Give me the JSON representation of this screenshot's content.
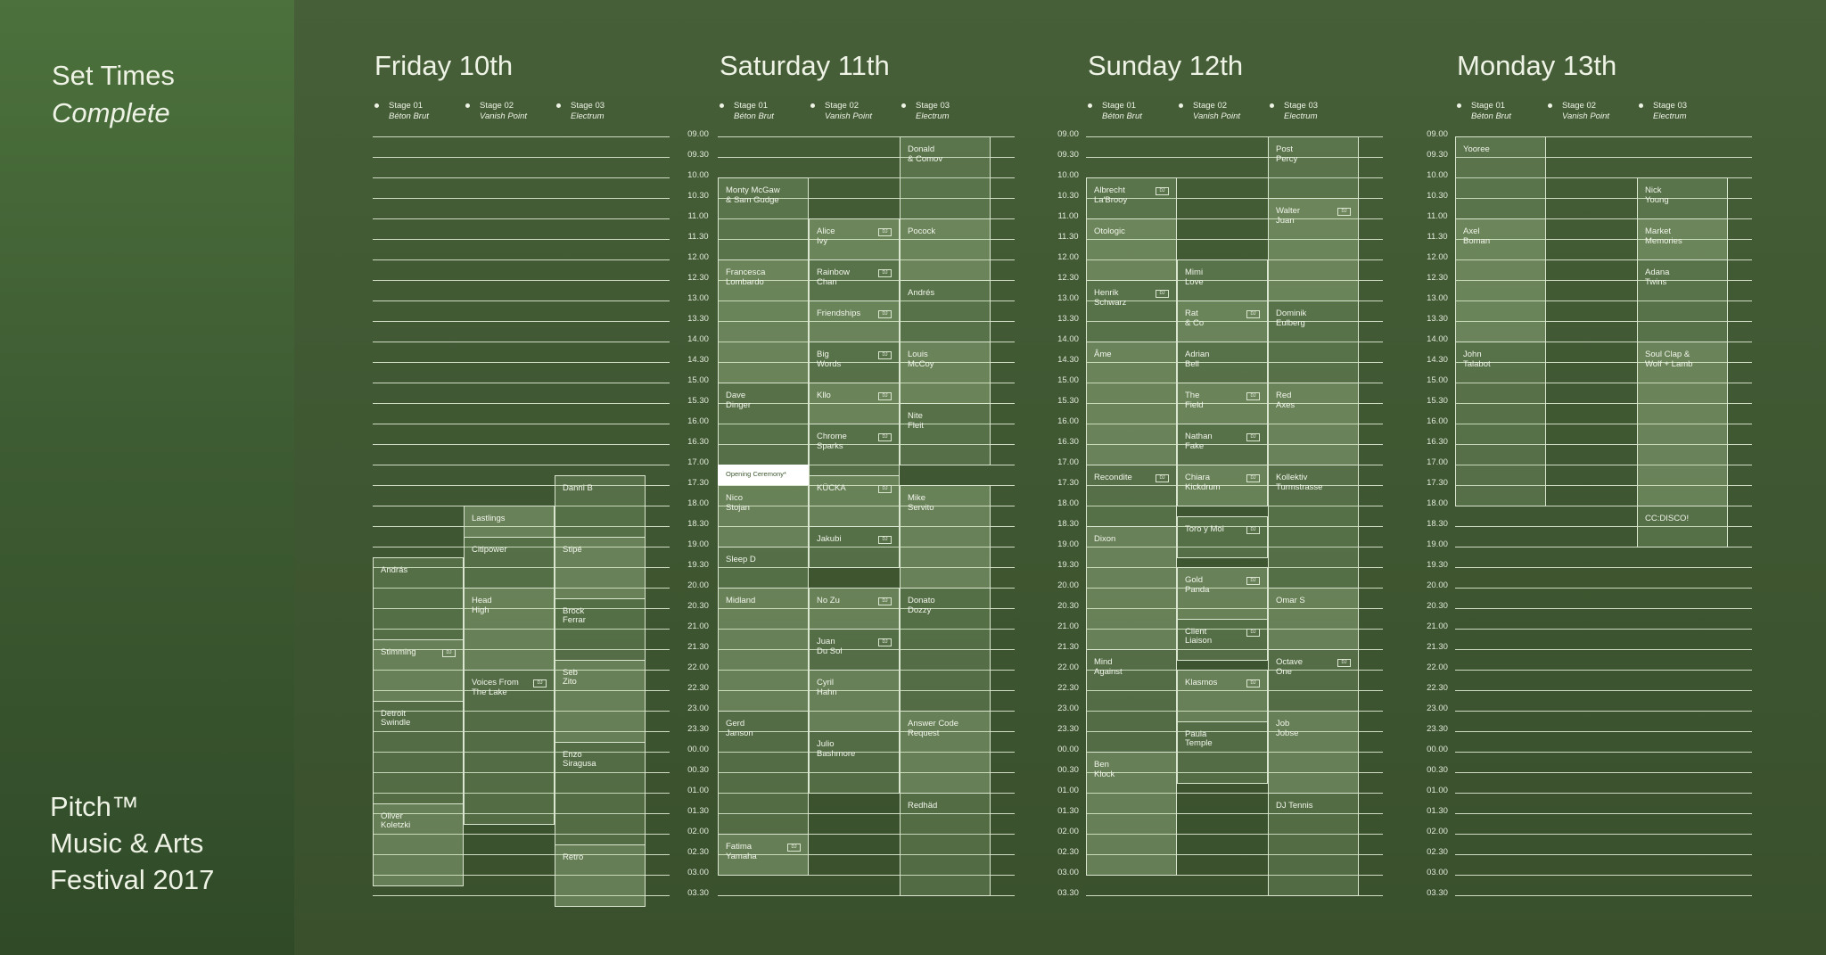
{
  "sidebar": {
    "title": "Set Times",
    "subtitle": "Complete",
    "footer": [
      "Pitch™",
      "Music & Arts",
      "Festival 2017"
    ]
  },
  "time_labels": [
    "09.00",
    "09.30",
    "10.00",
    "10.30",
    "11.00",
    "11.30",
    "12.00",
    "12.30",
    "13.00",
    "13.30",
    "14.00",
    "14.30",
    "15.00",
    "15.30",
    "16.00",
    "16.30",
    "17.00",
    "17.30",
    "18.00",
    "18.30",
    "19.00",
    "19.30",
    "20.00",
    "20.30",
    "21.00",
    "21.30",
    "22.00",
    "22.30",
    "23.00",
    "23.30",
    "00.00",
    "00.30",
    "01.00",
    "01.30",
    "02.00",
    "02.30",
    "03.00",
    "03.30"
  ],
  "tag_label": "DJ",
  "days": [
    {
      "title": "Friday 10th",
      "stages": [
        {
          "name": "Stage 01",
          "sub": "Béton Brut"
        },
        {
          "name": "Stage 02",
          "sub": "Vanish Point"
        },
        {
          "name": "Stage 03",
          "sub": "Electrum"
        }
      ],
      "sets": [
        [
          {
            "name": "András",
            "start": 20.5,
            "end": 24.5,
            "shade": 1
          },
          {
            "name": "Stimming",
            "start": 24.5,
            "end": 27.5,
            "shade": 2,
            "tag": true
          },
          {
            "name": "Detroit\nSwindle",
            "start": 27.5,
            "end": 32.5,
            "shade": 1
          },
          {
            "name": "Oliver\nKoletzki",
            "start": 32.5,
            "end": 36.5,
            "shade": 2
          }
        ],
        [
          {
            "name": "Lastlings",
            "start": 18.0,
            "end": 19.5,
            "shade": 2
          },
          {
            "name": "Citipower",
            "start": 19.5,
            "end": 22.0,
            "shade": 1
          },
          {
            "name": "Head\nHigh",
            "start": 22.0,
            "end": 26.0,
            "shade": 2
          },
          {
            "name": "Voices From\nThe Lake",
            "start": 26.0,
            "end": 33.5,
            "shade": 1,
            "tag": true
          }
        ],
        [
          {
            "name": "Danni B",
            "start": 16.5,
            "end": 19.5,
            "shade": 1
          },
          {
            "name": "Stipé",
            "start": 19.5,
            "end": 22.5,
            "shade": 2
          },
          {
            "name": "Brock\nFerrar",
            "start": 22.5,
            "end": 25.5,
            "shade": 1
          },
          {
            "name": "Seb\nZito",
            "start": 25.5,
            "end": 29.5,
            "shade": 2
          },
          {
            "name": "Enzo\nSiragusa",
            "start": 29.5,
            "end": 34.5,
            "shade": 1
          },
          {
            "name": "Retro",
            "start": 34.5,
            "end": 37.5,
            "shade": 2
          }
        ]
      ]
    },
    {
      "title": "Saturday 11th",
      "stages": [
        {
          "name": "Stage 01",
          "sub": "Béton Brut"
        },
        {
          "name": "Stage 02",
          "sub": "Vanish Point"
        },
        {
          "name": "Stage 03",
          "sub": "Electrum"
        }
      ],
      "sets": [
        [
          {
            "name": "Monty McGaw\n& Sam Gudge",
            "start": 2.0,
            "end": 6.0,
            "shade": 1
          },
          {
            "name": "Francesca\nLombardo",
            "start": 6.0,
            "end": 12.0,
            "shade": 2
          },
          {
            "name": "Dave\nDinger",
            "start": 12.0,
            "end": 16.0,
            "shade": 1
          },
          {
            "name": "Opening Ceremony*",
            "start": 16.0,
            "end": 17.0,
            "shade": 0,
            "white": true
          },
          {
            "name": "Nico\nStojan",
            "start": 17.0,
            "end": 20.0,
            "shade": 2
          },
          {
            "name": "Sleep D",
            "start": 20.0,
            "end": 22.0,
            "shade": 1
          },
          {
            "name": "Midland",
            "start": 22.0,
            "end": 28.0,
            "shade": 2
          },
          {
            "name": "Gerd\nJanson",
            "start": 28.0,
            "end": 34.0,
            "shade": 1
          },
          {
            "name": "Fatima\nYamaha",
            "start": 34.0,
            "end": 36.0,
            "shade": 2,
            "tag": true
          }
        ],
        [
          {
            "name": "Alice\nIvy",
            "start": 4.0,
            "end": 6.0,
            "shade": 2,
            "tag": true
          },
          {
            "name": "Rainbow\nChan",
            "start": 6.0,
            "end": 8.0,
            "shade": 1,
            "tag": true
          },
          {
            "name": "Friendships",
            "start": 8.0,
            "end": 10.0,
            "shade": 2,
            "tag": true
          },
          {
            "name": "Big\nWords",
            "start": 10.0,
            "end": 12.0,
            "shade": 1,
            "tag": true
          },
          {
            "name": "Kllo",
            "start": 12.0,
            "end": 14.0,
            "shade": 2,
            "tag": true
          },
          {
            "name": "Chrome\nSparks",
            "start": 14.0,
            "end": 16.5,
            "shade": 1,
            "tag": true
          },
          {
            "name": "KÜCKA",
            "start": 16.5,
            "end": 19.0,
            "shade": 2,
            "tag": true
          },
          {
            "name": "Jakubi",
            "start": 19.0,
            "end": 21.0,
            "shade": 1,
            "tag": true
          },
          {
            "name": "No Zu",
            "start": 22.0,
            "end": 24.0,
            "shade": 2,
            "tag": true
          },
          {
            "name": "Juan\nDu Sol",
            "start": 24.0,
            "end": 26.0,
            "shade": 1,
            "tag": true
          },
          {
            "name": "Cyril\nHahn",
            "start": 26.0,
            "end": 29.0,
            "shade": 2
          },
          {
            "name": "Julio\nBashmore",
            "start": 29.0,
            "end": 32.0,
            "shade": 1
          }
        ],
        [
          {
            "name": "Donald\n& Comov",
            "start": 0.0,
            "end": 4.0,
            "shade": 1
          },
          {
            "name": "Pocock",
            "start": 4.0,
            "end": 7.0,
            "shade": 2
          },
          {
            "name": "Andrés",
            "start": 7.0,
            "end": 10.0,
            "shade": 1
          },
          {
            "name": "Louis\nMcCoy",
            "start": 10.0,
            "end": 13.0,
            "shade": 2
          },
          {
            "name": "Nite\nFleit",
            "start": 13.0,
            "end": 16.0,
            "shade": 1
          },
          {
            "name": "Mike\nServito",
            "start": 17.0,
            "end": 22.0,
            "shade": 2
          },
          {
            "name": "Donato\nDozzy",
            "start": 22.0,
            "end": 28.0,
            "shade": 1
          },
          {
            "name": "Answer Code\nRequest",
            "start": 28.0,
            "end": 32.0,
            "shade": 2
          },
          {
            "name": "Redhäd",
            "start": 32.0,
            "end": 37.0,
            "shade": 1
          }
        ]
      ]
    },
    {
      "title": "Sunday 12th",
      "stages": [
        {
          "name": "Stage 01",
          "sub": "Béton Brut"
        },
        {
          "name": "Stage 02",
          "sub": "Vanish Point"
        },
        {
          "name": "Stage 03",
          "sub": "Electrum"
        }
      ],
      "sets": [
        [
          {
            "name": "Albrecht\nLa'Brooy",
            "start": 2.0,
            "end": 4.0,
            "shade": 1,
            "tag": true
          },
          {
            "name": "Otologic",
            "start": 4.0,
            "end": 7.0,
            "shade": 2
          },
          {
            "name": "Henrik\nSchwarz",
            "start": 7.0,
            "end": 10.0,
            "shade": 1,
            "tag": true
          },
          {
            "name": "Âme",
            "start": 10.0,
            "end": 16.0,
            "shade": 2
          },
          {
            "name": "Recondite",
            "start": 16.0,
            "end": 19.0,
            "shade": 1,
            "tag": true
          },
          {
            "name": "Dixon",
            "start": 19.0,
            "end": 25.0,
            "shade": 2
          },
          {
            "name": "Mind\nAgainst",
            "start": 25.0,
            "end": 30.0,
            "shade": 1
          },
          {
            "name": "Ben\nKlock",
            "start": 30.0,
            "end": 36.0,
            "shade": 2
          }
        ],
        [
          {
            "name": "Mimi\nLove",
            "start": 6.0,
            "end": 8.0,
            "shade": 1
          },
          {
            "name": "Rat\n& Co",
            "start": 8.0,
            "end": 10.0,
            "shade": 2,
            "tag": true
          },
          {
            "name": "Adrian\nBell",
            "start": 10.0,
            "end": 12.0,
            "shade": 1
          },
          {
            "name": "The\nField",
            "start": 12.0,
            "end": 14.0,
            "shade": 2,
            "tag": true
          },
          {
            "name": "Nathan\nFake",
            "start": 14.0,
            "end": 16.0,
            "shade": 1,
            "tag": true
          },
          {
            "name": "Chiara\nKickdrum",
            "start": 16.0,
            "end": 18.0,
            "shade": 2,
            "tag": true
          },
          {
            "name": "Toro y Moi",
            "start": 18.5,
            "end": 20.5,
            "shade": 1,
            "tag": true
          },
          {
            "name": "Gold\nPanda",
            "start": 21.0,
            "end": 23.5,
            "shade": 2,
            "tag": true
          },
          {
            "name": "Client\nLiaison",
            "start": 23.5,
            "end": 25.5,
            "shade": 1,
            "tag": true
          },
          {
            "name": "Klasmos",
            "start": 26.0,
            "end": 28.5,
            "shade": 2,
            "tag": true
          },
          {
            "name": "Paula\nTemple",
            "start": 28.5,
            "end": 31.5,
            "shade": 1
          }
        ],
        [
          {
            "name": "Post\nPercy",
            "start": 0.0,
            "end": 3.0,
            "shade": 1
          },
          {
            "name": "Walter\nJuan",
            "start": 3.0,
            "end": 8.0,
            "shade": 2,
            "tag": true
          },
          {
            "name": "Dominik\nEulberg",
            "start": 8.0,
            "end": 12.0,
            "shade": 1
          },
          {
            "name": "Red\nAxes",
            "start": 12.0,
            "end": 16.0,
            "shade": 2
          },
          {
            "name": "Kollektiv\nTurmstrasse",
            "start": 16.0,
            "end": 22.0,
            "shade": 1
          },
          {
            "name": "Omar S",
            "start": 22.0,
            "end": 25.0,
            "shade": 2
          },
          {
            "name": "Octave\nOne",
            "start": 25.0,
            "end": 28.0,
            "shade": 1,
            "tag": true
          },
          {
            "name": "Job\nJobse",
            "start": 28.0,
            "end": 32.0,
            "shade": 2
          },
          {
            "name": "DJ Tennis",
            "start": 32.0,
            "end": 37.0,
            "shade": 1
          }
        ]
      ]
    },
    {
      "title": "Monday 13th",
      "stages": [
        {
          "name": "Stage 01",
          "sub": "Béton Brut"
        },
        {
          "name": "Stage 02",
          "sub": "Vanish Point"
        },
        {
          "name": "Stage 03",
          "sub": "Electrum"
        }
      ],
      "sets": [
        [
          {
            "name": "Yooree",
            "start": 0.0,
            "end": 4.0,
            "shade": 1
          },
          {
            "name": "Axel\nBoman",
            "start": 4.0,
            "end": 10.0,
            "shade": 2
          },
          {
            "name": "John\nTalabot",
            "start": 10.0,
            "end": 18.0,
            "shade": 1
          }
        ],
        [],
        [
          {
            "name": "Nick\nYoung",
            "start": 2.0,
            "end": 4.0,
            "shade": 1
          },
          {
            "name": "Market\nMemories",
            "start": 4.0,
            "end": 6.0,
            "shade": 2
          },
          {
            "name": "Adana\nTwins",
            "start": 6.0,
            "end": 10.0,
            "shade": 1
          },
          {
            "name": "Soul Clap &\nWolf + Lamb",
            "start": 10.0,
            "end": 18.0,
            "shade": 2
          },
          {
            "name": "CC:DISCO!",
            "start": 18.0,
            "end": 20.0,
            "shade": 1
          }
        ]
      ]
    }
  ]
}
